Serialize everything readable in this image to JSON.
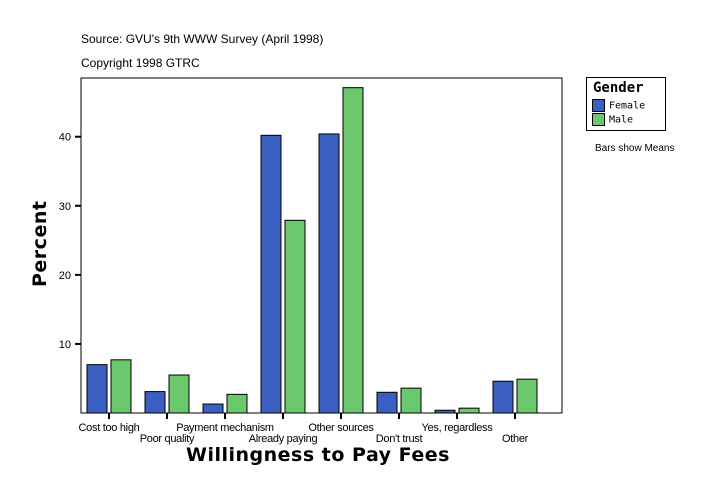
{
  "header": {
    "source": "Source: GVU's 9th WWW Survey (April 1998)",
    "copyright": "Copyright 1998 GTRC"
  },
  "note": "Bars show Means",
  "chart_data": {
    "type": "bar",
    "xlabel": "Willingness to Pay Fees",
    "ylabel": "Percent",
    "ylim": [
      0,
      48.5
    ],
    "yticks": [
      10,
      20,
      30,
      40
    ],
    "categories": [
      "Cost too high",
      "Poor quality",
      "Payment mechanism",
      "Already paying",
      "Other sources",
      "Don't trust",
      "Yes, regardless",
      "Other"
    ],
    "legend": {
      "title": "Gender",
      "placement": "right"
    },
    "series": [
      {
        "name": "Female",
        "color": "#3a5fc0",
        "values": [
          7.0,
          3.1,
          1.3,
          40.2,
          40.4,
          3.0,
          0.4,
          4.6
        ]
      },
      {
        "name": "Male",
        "color": "#6cc86c",
        "values": [
          7.7,
          5.5,
          2.7,
          27.9,
          47.1,
          3.6,
          0.7,
          4.9
        ]
      }
    ]
  }
}
